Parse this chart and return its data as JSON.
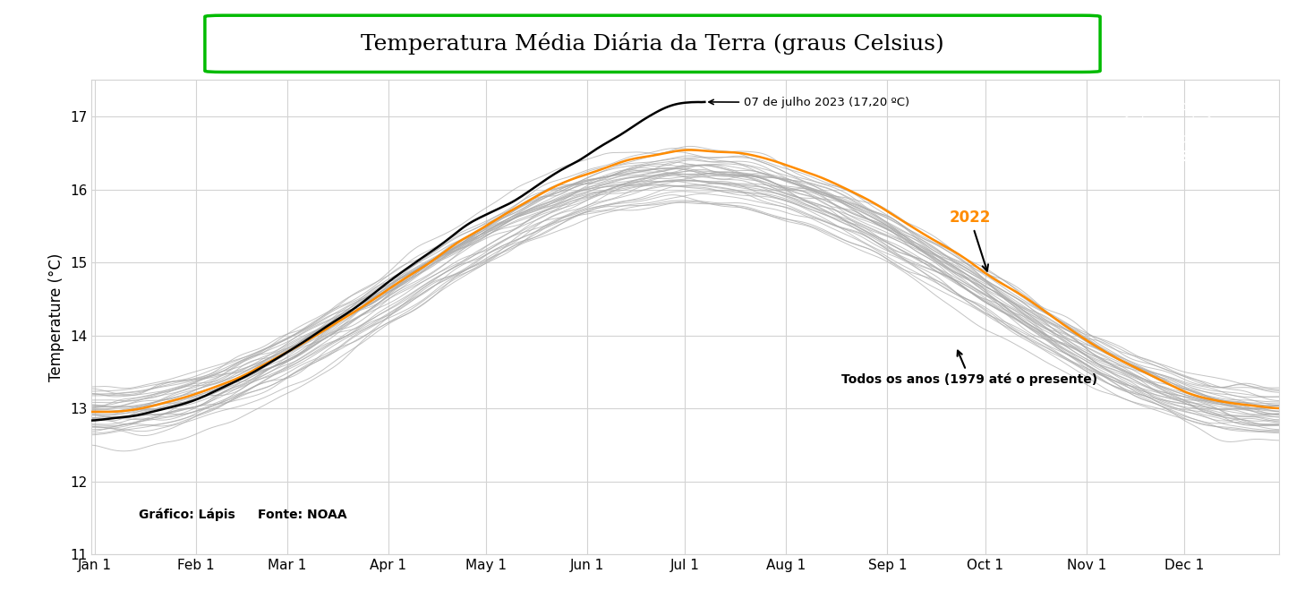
{
  "title": "Temperatura Média Diária da Terra (graus Celsius)",
  "ylabel": "Temperature (°C)",
  "ylim": [
    11,
    17.5
  ],
  "yticks": [
    11,
    12,
    13,
    14,
    15,
    16,
    17
  ],
  "month_labels": [
    "Jan 1",
    "Feb 1",
    "Mar 1",
    "Apr 1",
    "May 1",
    "Jun 1",
    "Jul 1",
    "Aug 1",
    "Sep 1",
    "Oct 1",
    "Nov 1",
    "Dec 1"
  ],
  "month_days": [
    1,
    32,
    60,
    91,
    121,
    152,
    182,
    213,
    244,
    274,
    305,
    335
  ],
  "annotation_2023_text": "07 de julho 2023 (17,20 ºC)",
  "annotation_2023_day": 188,
  "annotation_2023_temp": 17.2,
  "annotation_2022_text": "2022",
  "annotation_todos_text": "Todos os anos (1979 até o presente)",
  "credit_grafico": "Gráfico: Lápis",
  "credit_fonte": "Fonte: NOAA",
  "color_2023": "#000000",
  "color_2022": "#FF8C00",
  "color_gray": "#AAAAAA",
  "title_box_color": "#00AA00",
  "background_color": "#FFFFFF"
}
